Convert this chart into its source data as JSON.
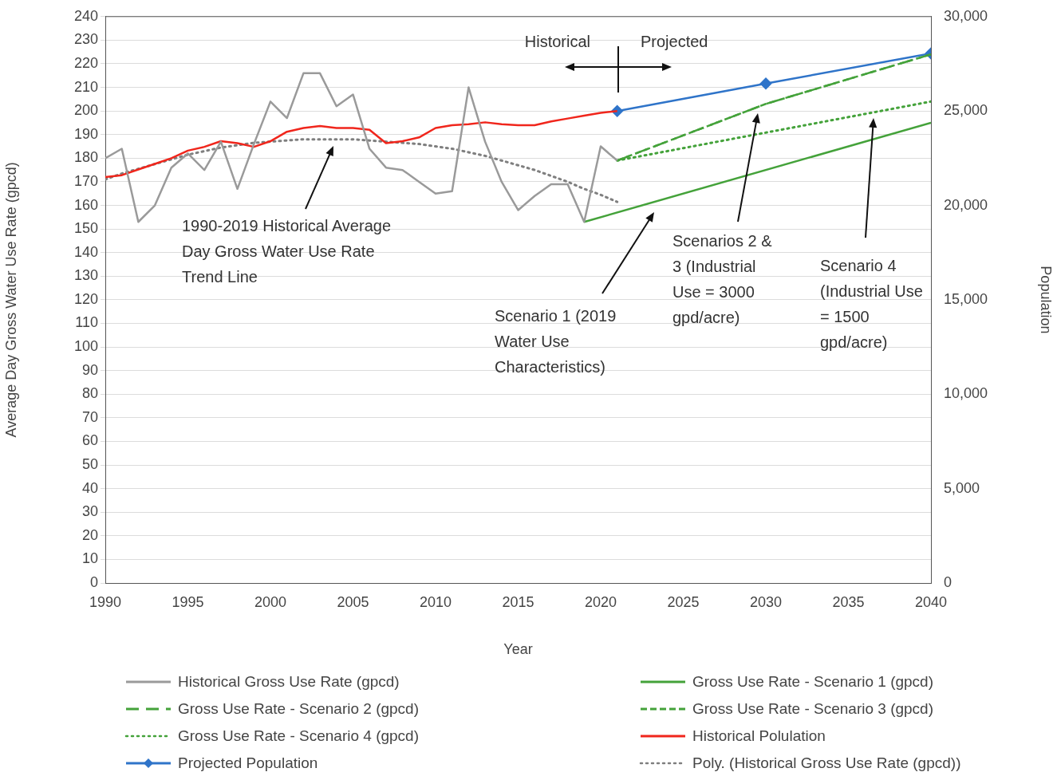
{
  "chart_data": {
    "type": "line",
    "xlabel": "Year",
    "ylabel": "Average Day Gross Water Use Rate (gpcd)",
    "y2label": "Population",
    "xlim": [
      1990,
      2040
    ],
    "xticks": [
      1990,
      1995,
      2000,
      2005,
      2010,
      2015,
      2020,
      2025,
      2030,
      2035,
      2040
    ],
    "ylim": [
      0,
      240
    ],
    "yticks": [
      0,
      10,
      20,
      30,
      40,
      50,
      60,
      70,
      80,
      90,
      100,
      110,
      120,
      130,
      140,
      150,
      160,
      170,
      180,
      190,
      200,
      210,
      220,
      230,
      240
    ],
    "y2lim": [
      0,
      30000
    ],
    "y2ticks": [
      0,
      {
        "value": 5000,
        "label": "5,000"
      },
      {
        "value": 10000,
        "label": "10,000"
      },
      {
        "value": 15000,
        "label": "15,000"
      },
      {
        "value": 20000,
        "label": "20,000"
      },
      {
        "value": 25000,
        "label": "25,000"
      },
      {
        "value": 30000,
        "label": "30,000"
      }
    ],
    "grid": "y",
    "legend": "bottom",
    "marker": "none",
    "series": [
      {
        "name": "Historical Gross Use Rate (gpcd)",
        "color": "#9a9a9a",
        "line_style": "solid",
        "x": [
          1990,
          1991,
          1992,
          1993,
          1994,
          1995,
          1996,
          1997,
          1998,
          1999,
          2000,
          2001,
          2002,
          2003,
          2004,
          2005,
          2006,
          2007,
          2008,
          2009,
          2010,
          2011,
          2012,
          2013,
          2014,
          2015,
          2016,
          2017,
          2018,
          2019,
          2020,
          2021
        ],
        "values": [
          180,
          184,
          153,
          160,
          176,
          182,
          175,
          187,
          167,
          186,
          204,
          197,
          216,
          216,
          202,
          207,
          184,
          176,
          175,
          170,
          165,
          166,
          210,
          187,
          170,
          158,
          164,
          169,
          169,
          153,
          185,
          179
        ]
      },
      {
        "name": "Gross Use Rate - Scenario 1 (gpcd)",
        "color": "#44a23a",
        "line_style": "solid",
        "x": [
          2019,
          2040
        ],
        "values": [
          153,
          195
        ]
      },
      {
        "name": "Gross Use Rate - Scenario 2 (gpcd)",
        "color": "#44a23a",
        "line_style": "longdash",
        "x": [
          2021,
          2030,
          2040
        ],
        "values": [
          179,
          203,
          224
        ]
      },
      {
        "name": "Gross Use Rate - Scenario 3 (gpcd)",
        "color": "#44a23a",
        "line_style": "dashed",
        "x": [
          2021,
          2030,
          2040
        ],
        "values": [
          179,
          203,
          224
        ]
      },
      {
        "name": "Gross Use Rate - Scenario 4 (gpcd)",
        "color": "#44a23a",
        "line_style": "dotted",
        "x": [
          2021,
          2040
        ],
        "values": [
          179,
          204
        ]
      },
      {
        "name": "Historical Polulation",
        "color": "#f0261c",
        "line_style": "solid",
        "axis": "y2",
        "x": [
          1990,
          1991,
          1992,
          1993,
          1994,
          1995,
          1996,
          1997,
          1998,
          1999,
          2000,
          2001,
          2002,
          2003,
          2004,
          2005,
          2006,
          2007,
          2008,
          2009,
          2010,
          2011,
          2012,
          2013,
          2014,
          2015,
          2016,
          2017,
          2018,
          2019,
          2020,
          2021
        ],
        "values": [
          21500,
          21600,
          21900,
          22200,
          22500,
          22900,
          23100,
          23400,
          23300,
          23100,
          23400,
          23900,
          24100,
          24200,
          24100,
          24100,
          24000,
          23300,
          23400,
          23600,
          24100,
          24250,
          24300,
          24400,
          24300,
          24250,
          24250,
          24450,
          24600,
          24750,
          24900,
          25000
        ]
      },
      {
        "name": "Projected Population",
        "color": "#2f74c9",
        "line_style": "solid",
        "marker": "diamond",
        "axis": "y2",
        "x": [
          2021,
          2030,
          2040
        ],
        "values": [
          25000,
          26450,
          28050
        ]
      },
      {
        "name": "Poly. (Historical Gross Use Rate (gpcd))",
        "color": "#7f7f7f",
        "line_style": "dotted",
        "x": [
          1990,
          1991,
          1992,
          1993,
          1994,
          1995,
          1996,
          1997,
          1998,
          1999,
          2000,
          2001,
          2002,
          2003,
          2004,
          2005,
          2006,
          2007,
          2008,
          2009,
          2010,
          2011,
          2012,
          2013,
          2014,
          2015,
          2016,
          2017,
          2018,
          2019,
          2020,
          2021
        ],
        "values": [
          171,
          173.5,
          175.5,
          177.5,
          179.5,
          181.5,
          183,
          184.5,
          185.5,
          186.5,
          187,
          187.5,
          188,
          188,
          188,
          188,
          187.5,
          187,
          186.5,
          186,
          185,
          184,
          182.5,
          181,
          179,
          177,
          175,
          172.5,
          170,
          167,
          164.5,
          161.5
        ]
      }
    ],
    "annotations": [
      "Historical",
      "Projected",
      "1990-2019 Historical Average Day Gross Water Use Rate Trend Line",
      "Scenario 1 (2019 Water Use Characteristics)",
      "Scenarios 2 & 3 (Industrial Use = 3000 gpd/acre)",
      "Scenario 4 (Industrial Use = 1500 gpd/acre)"
    ]
  }
}
